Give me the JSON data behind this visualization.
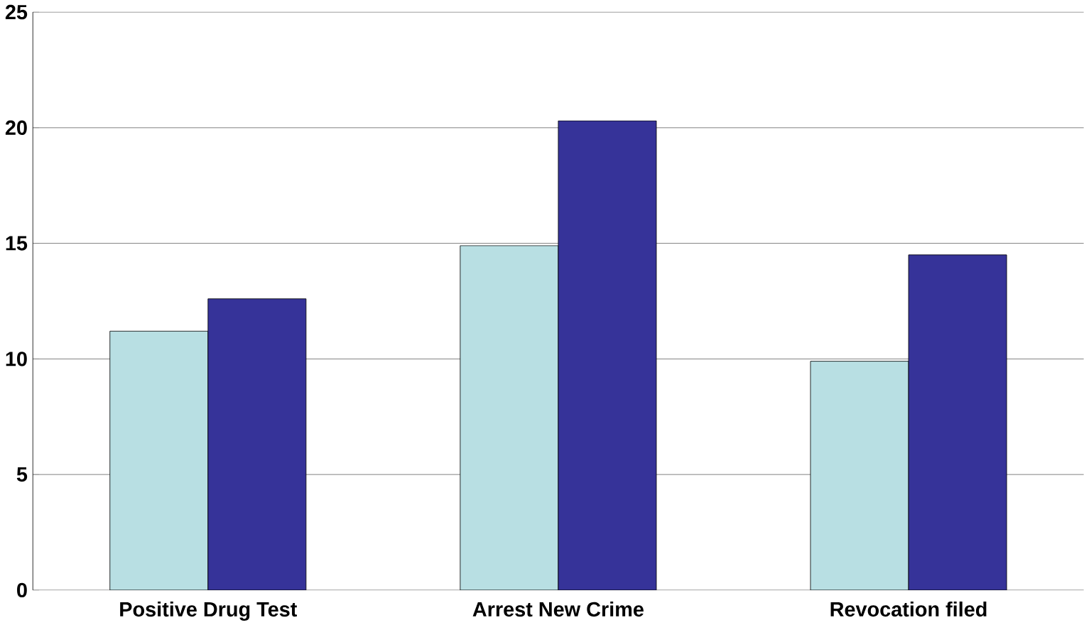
{
  "chart_data": {
    "type": "bar",
    "categories": [
      "Positive Drug Test",
      "Arrest New Crime",
      "Revocation filed"
    ],
    "series": [
      {
        "color": "#b8dfe3",
        "values": [
          11.2,
          14.9,
          9.9
        ]
      },
      {
        "color": "#363399",
        "values": [
          12.6,
          20.3,
          14.5
        ]
      }
    ],
    "ylim": [
      0,
      25
    ],
    "yticks": [
      0,
      5,
      10,
      15,
      20,
      25
    ],
    "grid": "y"
  }
}
